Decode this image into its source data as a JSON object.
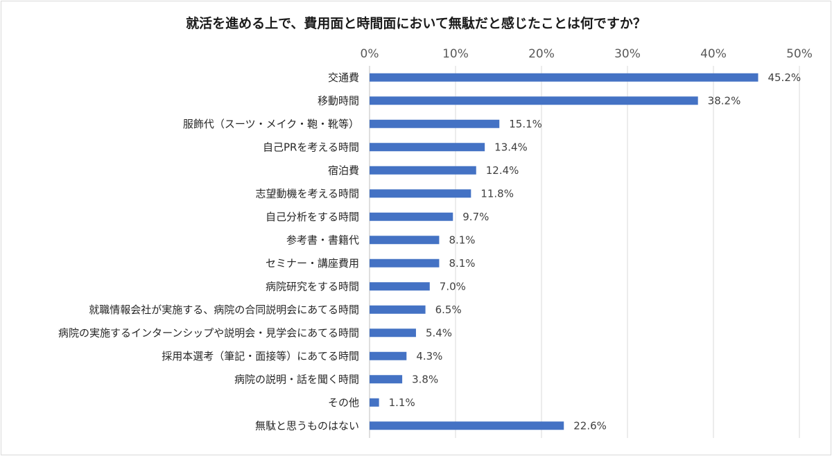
{
  "chart_data": {
    "type": "bar",
    "orientation": "horizontal",
    "title": "就活を進める上で、費用面と時間面において無駄だと感じたことは何ですか？",
    "xlim": [
      0,
      50
    ],
    "ticks": [
      "0%",
      "10%",
      "20%",
      "30%",
      "40%",
      "50%"
    ],
    "tick_values": [
      0,
      10,
      20,
      30,
      40,
      50
    ],
    "axis_position": "top",
    "grid": true,
    "legend": "none",
    "bar_color": "#4472C4",
    "categories": [
      "交通費",
      "移動時間",
      "服飾代（スーツ・メイク・鞄・靴等）",
      "自己PRを考える時間",
      "宿泊費",
      "志望動機を考える時間",
      "自己分析をする時間",
      "参考書・書籍代",
      "セミナー・講座費用",
      "病院研究をする時間",
      "就職情報会社が実施する、病院の合同説明会にあてる時間",
      "病院の実施するインターンシップや説明会・見学会にあてる時間",
      "採用本選考（筆記・面接等）にあてる時間",
      "病院の説明・話を聞く時間",
      "その他",
      "無駄と思うものはない"
    ],
    "values": [
      45.2,
      38.2,
      15.1,
      13.4,
      12.4,
      11.8,
      9.7,
      8.1,
      8.1,
      7.0,
      6.5,
      5.4,
      4.3,
      3.8,
      1.1,
      22.6
    ],
    "labels": [
      "45.2%",
      "38.2%",
      "15.1%",
      "13.4%",
      "12.4%",
      "11.8%",
      "9.7%",
      "8.1%",
      "8.1%",
      "7.0%",
      "6.5%",
      "5.4%",
      "4.3%",
      "3.8%",
      "1.1%",
      "22.6%"
    ]
  }
}
